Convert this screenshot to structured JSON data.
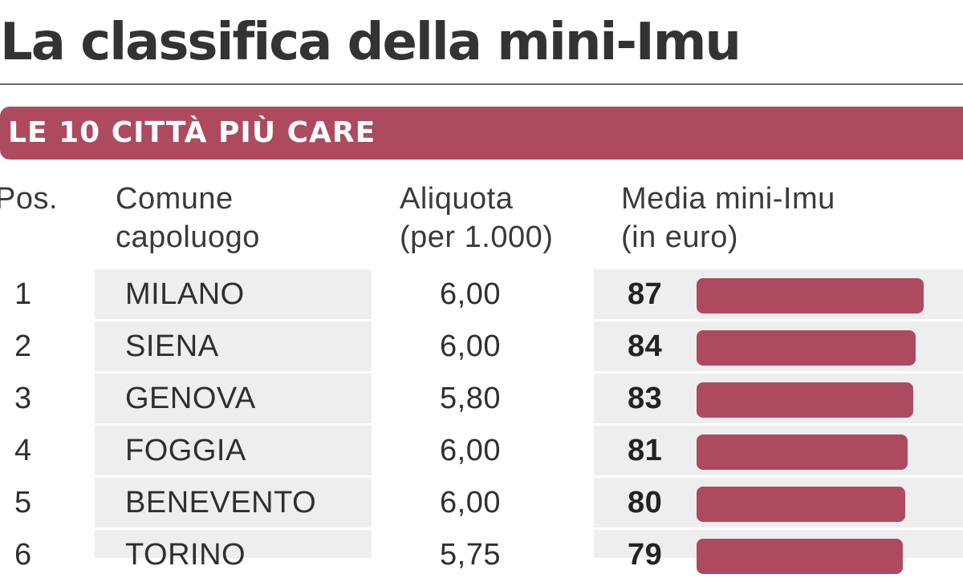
{
  "chart_data": {
    "type": "table",
    "title": "La classifica della mini-Imu",
    "subtitle": "LE 10 CITTÀ PIÙ CARE",
    "columns": [
      [
        "Pos."
      ],
      [
        "Comune",
        "capoluogo"
      ],
      [
        "Aliquota",
        "(per 1.000)"
      ],
      [
        "Media mini-Imu",
        "(in euro)"
      ]
    ],
    "bar_max": 87,
    "rows": [
      {
        "pos": "1",
        "city": "MILANO",
        "rate": "6,00",
        "value": 87
      },
      {
        "pos": "2",
        "city": "SIENA",
        "rate": "6,00",
        "value": 84
      },
      {
        "pos": "3",
        "city": "GENOVA",
        "rate": "5,80",
        "value": 83
      },
      {
        "pos": "4",
        "city": "FOGGIA",
        "rate": "6,00",
        "value": 81
      },
      {
        "pos": "5",
        "city": "BENEVENTO",
        "rate": "6,00",
        "value": 80
      },
      {
        "pos": "6",
        "city": "TORINO",
        "rate": "5,75",
        "value": 79
      }
    ],
    "colors": {
      "accent": "#ad4a60",
      "cell_background": "#eeeeee",
      "text": "#2f2f2f"
    }
  }
}
